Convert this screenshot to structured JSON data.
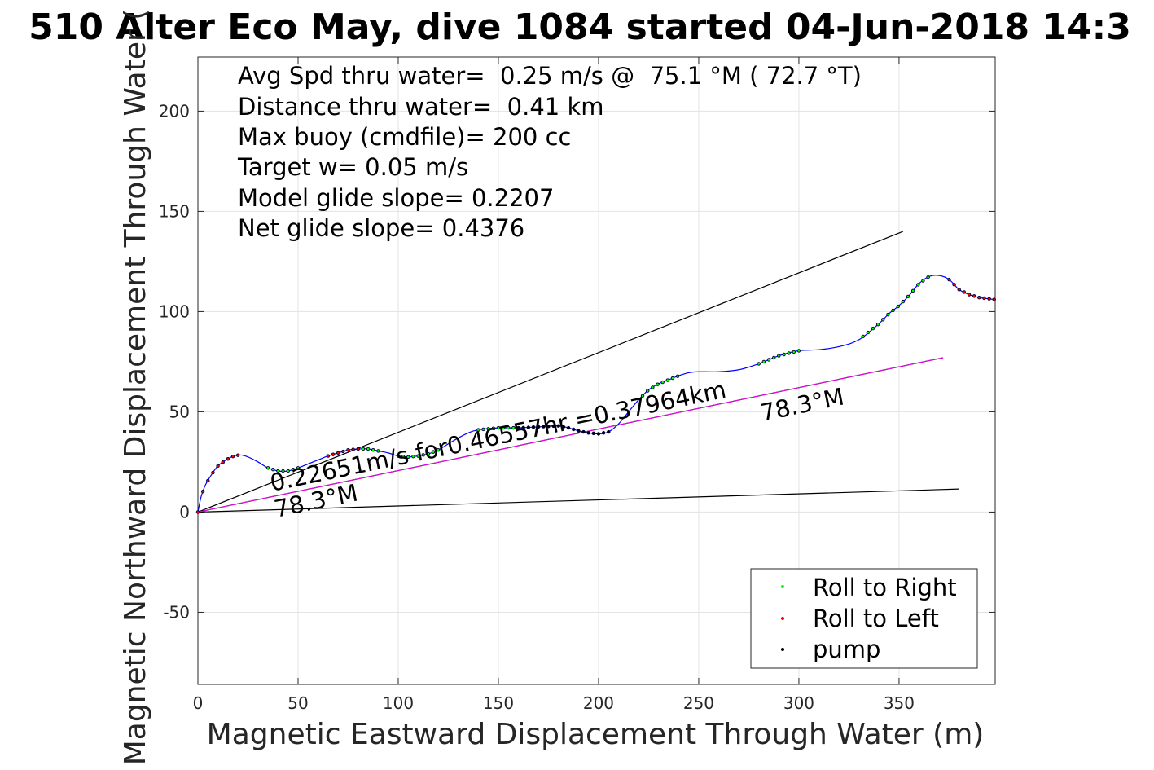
{
  "chart_data": {
    "type": "scatter",
    "title": "510 Alter Eco May, dive 1084 started 04-Jun-2018 14:3",
    "xlabel": "Magnetic Eastward Displacement Through Water (m)",
    "ylabel": "Magnetic Northward Displacement Through Water (",
    "xlim": [
      0,
      398
    ],
    "ylim": [
      -86,
      227
    ],
    "xticks": [
      0,
      50,
      100,
      150,
      200,
      250,
      300,
      350
    ],
    "yticks": [
      -50,
      0,
      50,
      100,
      150,
      200
    ],
    "ytick_labels": [
      "-50",
      "0",
      "50",
      "100",
      "150",
      "200"
    ],
    "grid": true,
    "legend_position": "bottom-right",
    "stats": [
      "Avg Spd thru water=  0.25 m/s @  75.1 °M ( 72.7 °T)",
      "Distance thru water=  0.41 km",
      "Max buoy (cmdfile)= 200 cc",
      "Target w= 0.05 m/s",
      "Model glide slope= 0.2207",
      "Net glide slope= 0.4376"
    ],
    "annotations": {
      "speed_label": "0.22651m/s for0.46557hr =0.37964km",
      "heading_label_start": "78.3°M",
      "heading_label_end": "78.3°M"
    },
    "track_color": "#0000ff",
    "track": [
      [
        0,
        0
      ],
      [
        1,
        5
      ],
      [
        2,
        9
      ],
      [
        4,
        14
      ],
      [
        7,
        19
      ],
      [
        10,
        23
      ],
      [
        14,
        26
      ],
      [
        18,
        28
      ],
      [
        21,
        28.5
      ],
      [
        25,
        27.5
      ],
      [
        30,
        25
      ],
      [
        35,
        22
      ],
      [
        40,
        20.5
      ],
      [
        45,
        20.5
      ],
      [
        50,
        22
      ],
      [
        55,
        24
      ],
      [
        60,
        26
      ],
      [
        65,
        28
      ],
      [
        70,
        29.5
      ],
      [
        75,
        31
      ],
      [
        80,
        31.5
      ],
      [
        85,
        31.5
      ],
      [
        90,
        30.5
      ],
      [
        95,
        29.5
      ],
      [
        100,
        28
      ],
      [
        105,
        27.5
      ],
      [
        110,
        28
      ],
      [
        115,
        29
      ],
      [
        120,
        31
      ],
      [
        125,
        34
      ],
      [
        130,
        37
      ],
      [
        135,
        39.5
      ],
      [
        140,
        41
      ],
      [
        150,
        42
      ],
      [
        160,
        42
      ],
      [
        170,
        42.5
      ],
      [
        180,
        43
      ],
      [
        185,
        42
      ],
      [
        190,
        40.5
      ],
      [
        195,
        39.5
      ],
      [
        200,
        39
      ],
      [
        205,
        40
      ],
      [
        210,
        44
      ],
      [
        215,
        50
      ],
      [
        220,
        56
      ],
      [
        225,
        61
      ],
      [
        230,
        64
      ],
      [
        235,
        66
      ],
      [
        240,
        68
      ],
      [
        245,
        69.5
      ],
      [
        250,
        70
      ],
      [
        260,
        70
      ],
      [
        270,
        71
      ],
      [
        280,
        74
      ],
      [
        290,
        78
      ],
      [
        300,
        80.5
      ],
      [
        310,
        81
      ],
      [
        320,
        82.5
      ],
      [
        330,
        86
      ],
      [
        340,
        94
      ],
      [
        345,
        99
      ],
      [
        350,
        103
      ],
      [
        355,
        108
      ],
      [
        360,
        114
      ],
      [
        365,
        117.5
      ],
      [
        370,
        118
      ],
      [
        375,
        116
      ],
      [
        380,
        111
      ],
      [
        385,
        108.5
      ],
      [
        390,
        107
      ],
      [
        398,
        106
      ]
    ],
    "model_line": {
      "from": [
        0,
        0
      ],
      "to": [
        380,
        11.5
      ]
    },
    "net_line": {
      "from": [
        0,
        0
      ],
      "to": [
        352,
        140
      ]
    },
    "heading_line": {
      "from": [
        0,
        0
      ],
      "to": [
        372,
        77
      ]
    },
    "series": [
      {
        "name": "Roll to Right",
        "color": "#00ff00",
        "x_ranges": [
          [
            35,
            50
          ],
          [
            80,
            90
          ],
          [
            100,
            120
          ],
          [
            140,
            160
          ],
          [
            222,
            240
          ],
          [
            280,
            300
          ],
          [
            332,
            365
          ]
        ]
      },
      {
        "name": "Roll to Left",
        "color": "#ff0000",
        "x_ranges": [
          [
            0,
            22
          ],
          [
            65,
            80
          ],
          [
            375,
            398
          ]
        ]
      },
      {
        "name": "pump",
        "color": "#000000",
        "x_ranges": [
          [
            160,
            205
          ]
        ]
      }
    ]
  }
}
